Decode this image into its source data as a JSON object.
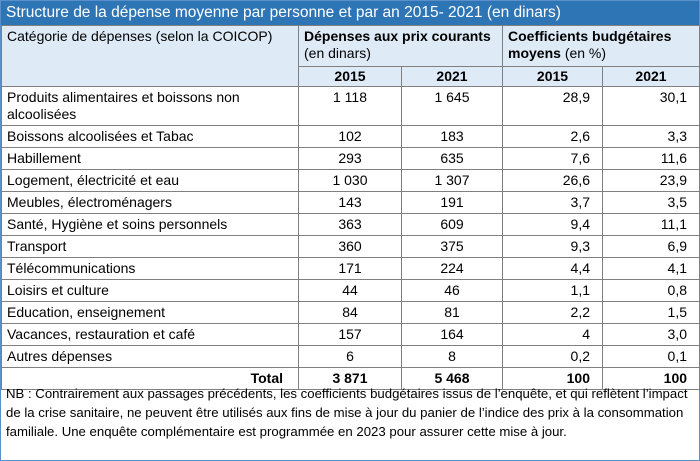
{
  "title": "Structure de la dépense moyenne par personne et par an 2015- 2021 (en dinars)",
  "header": {
    "category": "Catégorie de dépenses (selon la COICOP)",
    "group1_bold": "Dépenses aux prix courants",
    "group1_rest": "(en dinars)",
    "group2_bold": "Coefficients budgétaires moyens",
    "group2_rest": "(en %)",
    "years": [
      "2015",
      "2021",
      "2015",
      "2021"
    ]
  },
  "rows": [
    {
      "label": "Produits alimentaires et boissons non alcoolisées",
      "d2015": "1 118",
      "d2021": "1 645",
      "c2015": "28,9",
      "c2021": "30,1"
    },
    {
      "label": "Boissons alcoolisées et Tabac",
      "d2015": "102",
      "d2021": "183",
      "c2015": "2,6",
      "c2021": "3,3"
    },
    {
      "label": "Habillement",
      "d2015": "293",
      "d2021": "635",
      "c2015": "7,6",
      "c2021": "11,6"
    },
    {
      "label": "Logement, électricité et eau",
      "d2015": "1 030",
      "d2021": "1 307",
      "c2015": "26,6",
      "c2021": "23,9"
    },
    {
      "label": "Meubles, électroménagers",
      "d2015": "143",
      "d2021": "191",
      "c2015": "3,7",
      "c2021": "3,5"
    },
    {
      "label": "Santé, Hygiène et soins personnels",
      "d2015": "363",
      "d2021": "609",
      "c2015": "9,4",
      "c2021": "11,1"
    },
    {
      "label": "Transport",
      "d2015": "360",
      "d2021": "375",
      "c2015": "9,3",
      "c2021": "6,9"
    },
    {
      "label": "Télécommunications",
      "d2015": "171",
      "d2021": "224",
      "c2015": "4,4",
      "c2021": "4,1"
    },
    {
      "label": "Loisirs et culture",
      "d2015": "44",
      "d2021": "46",
      "c2015": "1,1",
      "c2021": "0,8"
    },
    {
      "label": "Education, enseignement",
      "d2015": "84",
      "d2021": "81",
      "c2015": "2,2",
      "c2021": "1,5"
    },
    {
      "label": "Vacances, restauration et café",
      "d2015": "157",
      "d2021": "164",
      "c2015": "4",
      "c2021": "3,0"
    },
    {
      "label": "Autres dépenses",
      "d2015": "6",
      "d2021": "8",
      "c2015": "0,2",
      "c2021": "0,1"
    }
  ],
  "total": {
    "label": "Total",
    "d2015": "3 871",
    "d2021": "5 468",
    "c2015": "100",
    "c2021": "100"
  },
  "note": "NB : Contrairement aux passages précédents, les coefficients budgétaires issus de l’enquête, et qui reflètent l’impact de la crise sanitaire, ne peuvent être utilisés aux fins de mise à jour du panier de l’indice des prix à la consommation familiale. Une enquête complémentaire est programmée en 2023 pour assurer cette mise à jour.",
  "colors": {
    "title_bg": "#2e75b6",
    "header_bg": "#deebf7"
  }
}
